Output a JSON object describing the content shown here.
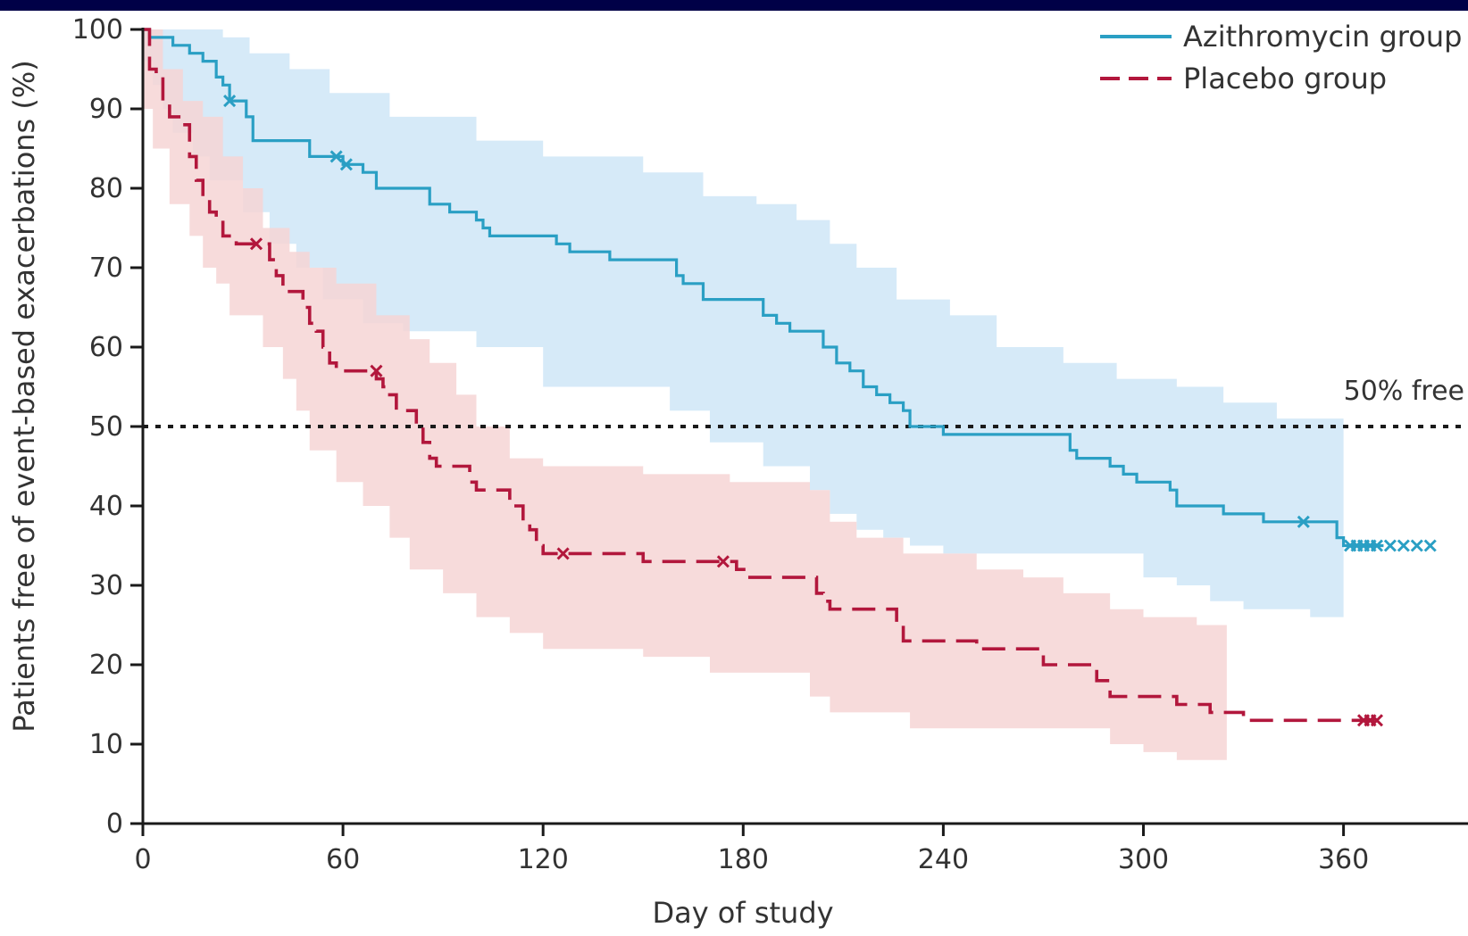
{
  "colors": {
    "frame": "#000047",
    "azithromycin": "#2a9fc4",
    "azithromycin_band": "#d6eaf8",
    "placebo": "#b2173c",
    "placebo_band": "#f6d5d5",
    "overlap": "#cfcfd2",
    "reference_line": "#1a1a1a"
  },
  "chart_data": {
    "type": "line",
    "subtype": "kaplan-meier step curves with confidence bands",
    "xlabel": "Day of study",
    "ylabel": "Patients free of event-based exacerbations (%)",
    "xlim": [
      0,
      400
    ],
    "ylim": [
      0,
      100
    ],
    "xticks": [
      0,
      60,
      120,
      180,
      240,
      300,
      360
    ],
    "yticks": [
      0,
      10,
      20,
      30,
      40,
      50,
      60,
      70,
      80,
      90,
      100
    ],
    "grid": false,
    "legend_position": "top-right",
    "reference_line": {
      "y": 50,
      "label": "50% free",
      "style": "dotted"
    },
    "series": [
      {
        "name": "Azithromycin group",
        "line_style": "solid",
        "steps": [
          [
            0,
            100
          ],
          [
            2,
            99
          ],
          [
            9,
            98
          ],
          [
            14,
            97
          ],
          [
            18,
            96
          ],
          [
            22,
            94
          ],
          [
            24,
            93
          ],
          [
            26,
            91
          ],
          [
            31,
            89
          ],
          [
            33,
            86
          ],
          [
            50,
            84
          ],
          [
            58,
            84
          ],
          [
            60,
            83
          ],
          [
            66,
            82
          ],
          [
            70,
            80
          ],
          [
            84,
            80
          ],
          [
            86,
            78
          ],
          [
            90,
            78
          ],
          [
            92,
            77
          ],
          [
            100,
            76
          ],
          [
            102,
            75
          ],
          [
            104,
            74
          ],
          [
            122,
            74
          ],
          [
            124,
            73
          ],
          [
            128,
            72
          ],
          [
            136,
            72
          ],
          [
            140,
            71
          ],
          [
            158,
            71
          ],
          [
            160,
            69
          ],
          [
            162,
            68
          ],
          [
            168,
            66
          ],
          [
            184,
            66
          ],
          [
            186,
            64
          ],
          [
            190,
            63
          ],
          [
            194,
            62
          ],
          [
            202,
            62
          ],
          [
            204,
            60
          ],
          [
            208,
            58
          ],
          [
            212,
            57
          ],
          [
            216,
            55
          ],
          [
            220,
            54
          ],
          [
            224,
            53
          ],
          [
            228,
            52
          ],
          [
            230,
            50
          ],
          [
            240,
            49
          ],
          [
            276,
            49
          ],
          [
            278,
            47
          ],
          [
            280,
            46
          ],
          [
            290,
            45
          ],
          [
            294,
            44
          ],
          [
            298,
            43
          ],
          [
            308,
            42
          ],
          [
            310,
            40
          ],
          [
            322,
            40
          ],
          [
            324,
            39
          ],
          [
            334,
            39
          ],
          [
            336,
            38
          ],
          [
            352,
            38
          ],
          [
            358,
            36
          ],
          [
            360,
            35
          ],
          [
            372,
            35
          ]
        ],
        "censor_marks": [
          [
            26,
            91
          ],
          [
            58,
            84
          ],
          [
            61,
            83
          ],
          [
            348,
            38
          ],
          [
            362,
            35
          ],
          [
            364,
            35
          ],
          [
            366,
            35
          ],
          [
            368,
            35
          ],
          [
            370,
            35
          ],
          [
            374,
            35
          ],
          [
            378,
            35
          ],
          [
            382,
            35
          ],
          [
            386,
            35
          ]
        ],
        "ci_lower": [
          [
            0,
            100
          ],
          [
            3,
            96
          ],
          [
            6,
            93
          ],
          [
            9,
            90
          ],
          [
            15,
            87
          ],
          [
            20,
            84
          ],
          [
            30,
            81
          ],
          [
            38,
            77
          ],
          [
            46,
            73
          ],
          [
            54,
            70
          ],
          [
            66,
            66
          ],
          [
            78,
            63
          ],
          [
            100,
            62
          ],
          [
            120,
            60
          ],
          [
            158,
            55
          ],
          [
            170,
            52
          ],
          [
            186,
            48
          ],
          [
            200,
            45
          ],
          [
            206,
            42
          ],
          [
            214,
            39
          ],
          [
            222,
            37
          ],
          [
            230,
            36
          ],
          [
            240,
            35
          ],
          [
            300,
            34
          ],
          [
            310,
            31
          ],
          [
            320,
            30
          ],
          [
            330,
            28
          ],
          [
            350,
            27
          ],
          [
            355,
            26
          ],
          [
            360,
            26
          ]
        ],
        "ci_upper": [
          [
            0,
            100
          ],
          [
            12,
            100
          ],
          [
            24,
            99
          ],
          [
            32,
            97
          ],
          [
            44,
            95
          ],
          [
            56,
            92
          ],
          [
            74,
            89
          ],
          [
            100,
            86
          ],
          [
            120,
            84
          ],
          [
            150,
            82
          ],
          [
            168,
            79
          ],
          [
            184,
            78
          ],
          [
            196,
            76
          ],
          [
            206,
            73
          ],
          [
            214,
            70
          ],
          [
            226,
            66
          ],
          [
            242,
            64
          ],
          [
            256,
            60
          ],
          [
            276,
            58
          ],
          [
            292,
            56
          ],
          [
            310,
            55
          ],
          [
            324,
            53
          ],
          [
            340,
            51
          ],
          [
            360,
            49
          ]
        ]
      },
      {
        "name": "Placebo group",
        "line_style": "dashed",
        "steps": [
          [
            0,
            100
          ],
          [
            2,
            95
          ],
          [
            4,
            94
          ],
          [
            6,
            91
          ],
          [
            8,
            89
          ],
          [
            12,
            88
          ],
          [
            14,
            84
          ],
          [
            16,
            81
          ],
          [
            18,
            79
          ],
          [
            20,
            77
          ],
          [
            22,
            76
          ],
          [
            24,
            74
          ],
          [
            28,
            73
          ],
          [
            36,
            73
          ],
          [
            38,
            71
          ],
          [
            40,
            69
          ],
          [
            42,
            67
          ],
          [
            46,
            67
          ],
          [
            48,
            65
          ],
          [
            50,
            63
          ],
          [
            52,
            62
          ],
          [
            54,
            60
          ],
          [
            56,
            58
          ],
          [
            58,
            57
          ],
          [
            66,
            57
          ],
          [
            70,
            56
          ],
          [
            72,
            55
          ],
          [
            74,
            54
          ],
          [
            76,
            52
          ],
          [
            80,
            52
          ],
          [
            82,
            50
          ],
          [
            84,
            48
          ],
          [
            86,
            46
          ],
          [
            88,
            45
          ],
          [
            96,
            45
          ],
          [
            98,
            43
          ],
          [
            100,
            42
          ],
          [
            108,
            42
          ],
          [
            110,
            40
          ],
          [
            114,
            38
          ],
          [
            116,
            37
          ],
          [
            118,
            35
          ],
          [
            120,
            34
          ],
          [
            150,
            33
          ],
          [
            176,
            33
          ],
          [
            178,
            32
          ],
          [
            182,
            31
          ],
          [
            200,
            31
          ],
          [
            202,
            29
          ],
          [
            204,
            28
          ],
          [
            206,
            27
          ],
          [
            222,
            27
          ],
          [
            226,
            25
          ],
          [
            228,
            23
          ],
          [
            240,
            23
          ],
          [
            250,
            22
          ],
          [
            266,
            22
          ],
          [
            270,
            20
          ],
          [
            284,
            20
          ],
          [
            286,
            18
          ],
          [
            290,
            16
          ],
          [
            304,
            16
          ],
          [
            310,
            15
          ],
          [
            318,
            15
          ],
          [
            320,
            14
          ],
          [
            330,
            13
          ],
          [
            370,
            13
          ]
        ],
        "censor_marks": [
          [
            34,
            73
          ],
          [
            70,
            57
          ],
          [
            126,
            34
          ],
          [
            174,
            33
          ],
          [
            366,
            13
          ],
          [
            368,
            13
          ],
          [
            370,
            13
          ]
        ],
        "ci_lower": [
          [
            0,
            100
          ],
          [
            3,
            90
          ],
          [
            8,
            85
          ],
          [
            14,
            78
          ],
          [
            18,
            74
          ],
          [
            22,
            70
          ],
          [
            26,
            68
          ],
          [
            36,
            64
          ],
          [
            42,
            60
          ],
          [
            46,
            56
          ],
          [
            50,
            52
          ],
          [
            58,
            47
          ],
          [
            66,
            43
          ],
          [
            74,
            40
          ],
          [
            80,
            36
          ],
          [
            90,
            32
          ],
          [
            100,
            29
          ],
          [
            110,
            26
          ],
          [
            120,
            24
          ],
          [
            150,
            22
          ],
          [
            170,
            21
          ],
          [
            200,
            19
          ],
          [
            206,
            16
          ],
          [
            230,
            14
          ],
          [
            290,
            12
          ],
          [
            300,
            10
          ],
          [
            310,
            9
          ],
          [
            325,
            8
          ]
        ],
        "ci_upper": [
          [
            0,
            100
          ],
          [
            6,
            95
          ],
          [
            12,
            91
          ],
          [
            18,
            89
          ],
          [
            24,
            84
          ],
          [
            30,
            80
          ],
          [
            36,
            75
          ],
          [
            44,
            72
          ],
          [
            50,
            70
          ],
          [
            58,
            68
          ],
          [
            70,
            64
          ],
          [
            80,
            61
          ],
          [
            86,
            58
          ],
          [
            94,
            54
          ],
          [
            100,
            50
          ],
          [
            110,
            46
          ],
          [
            120,
            45
          ],
          [
            150,
            44
          ],
          [
            176,
            43
          ],
          [
            200,
            42
          ],
          [
            206,
            38
          ],
          [
            214,
            36
          ],
          [
            228,
            34
          ],
          [
            250,
            32
          ],
          [
            264,
            31
          ],
          [
            276,
            29
          ],
          [
            290,
            27
          ],
          [
            300,
            26
          ],
          [
            316,
            25
          ],
          [
            325,
            25
          ]
        ]
      }
    ]
  }
}
